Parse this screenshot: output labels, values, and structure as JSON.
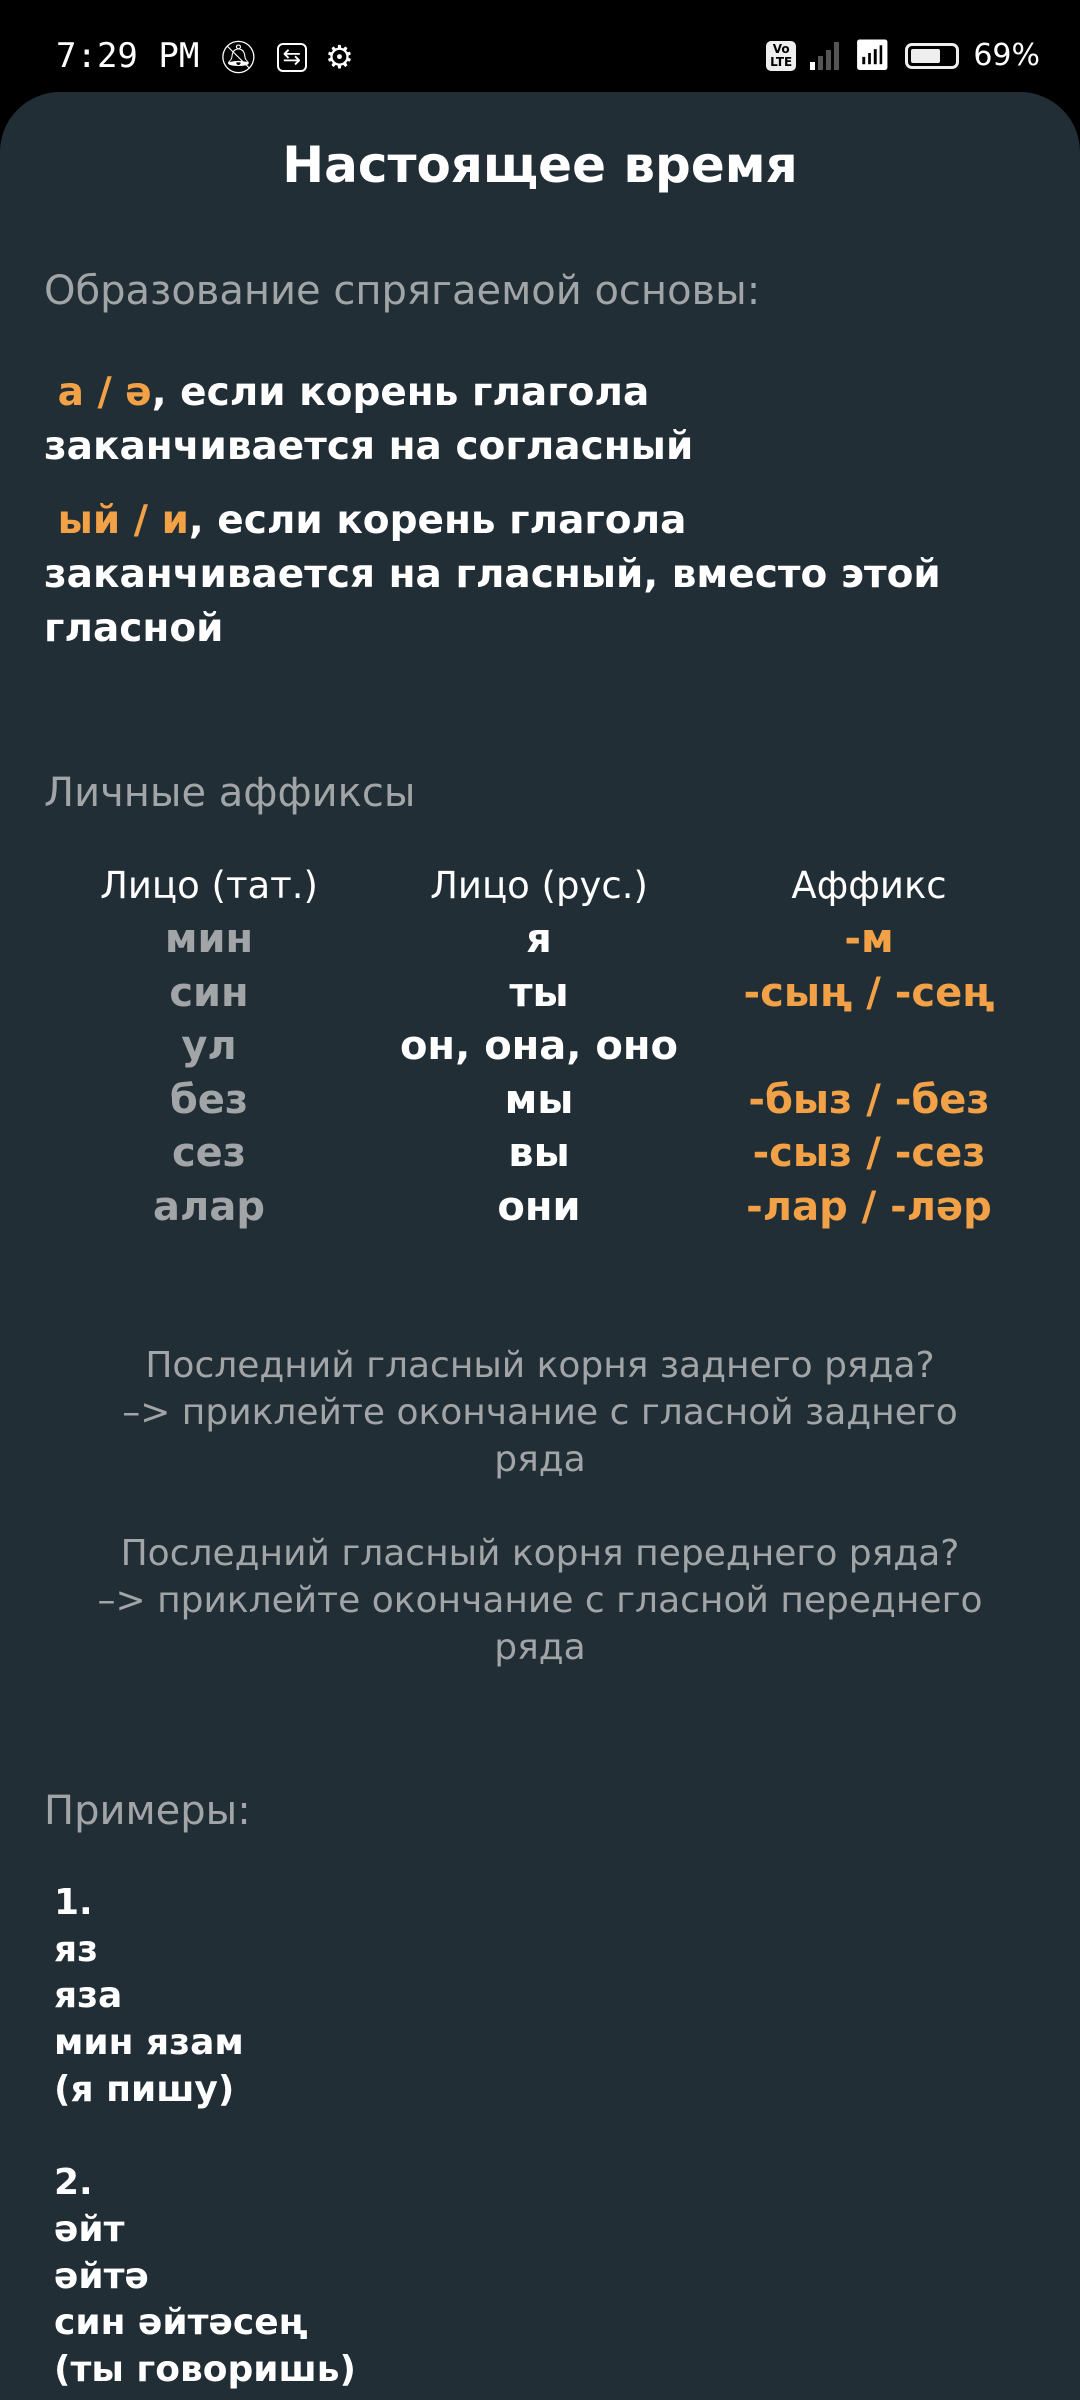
{
  "status_bar": {
    "time": "7:29 PM",
    "battery": "69%",
    "battery_level": 0.69,
    "icons": [
      "bell-off-icon",
      "cast-icon",
      "gear-icon",
      "volte-icon",
      "signal-icon",
      "wifi-icon",
      "battery-icon"
    ],
    "volte": "Vo LTE"
  },
  "title": "Настоящее время",
  "colors": {
    "background": "#222e35",
    "accent": "#f2a146",
    "muted": "#a2a5a7"
  },
  "formation": {
    "heading": "Образование спрягаемой основы:",
    "rules": [
      {
        "affix": "а / ә",
        "line1": ", если корень глагола",
        "line2": "заканчивается на согласный"
      },
      {
        "affix": "ый / и",
        "line1": ", если корень глагола",
        "line2": "заканчивается на гласный, вместо этой",
        "line3": "гласной"
      }
    ]
  },
  "affixes": {
    "heading": "Личные аффиксы",
    "columns": [
      "Лицо (тат.)",
      "Лицо (рус.)",
      "Аффикс"
    ],
    "rows": [
      {
        "tat": "мин",
        "rus": "я",
        "affix": "-м"
      },
      {
        "tat": "син",
        "rus": "ты",
        "affix": "-сың / -сең"
      },
      {
        "tat": "ул",
        "rus": "он, она, оно",
        "affix": ""
      },
      {
        "tat": "без",
        "rus": "мы",
        "affix": "-быз / -без"
      },
      {
        "tat": "сез",
        "rus": "вы",
        "affix": "-сыз / -сез"
      },
      {
        "tat": "алар",
        "rus": "они",
        "affix": "-лар / -ләр"
      }
    ]
  },
  "notes": [
    [
      "Последний гласный корня заднего ряда?",
      "–> приклейте окончание с гласной заднего",
      "ряда"
    ],
    [
      "Последний гласный корня переднего ряда?",
      "–> приклейте окончание с гласной переднего",
      "ряда"
    ]
  ],
  "examples": {
    "heading": "Примеры:",
    "items": [
      [
        "1.",
        "яз",
        "яза",
        "мин язам",
        "(я пишу)"
      ],
      [
        "2.",
        "әйт",
        "әйтә",
        "син әйтәсең",
        "(ты говоришь)"
      ]
    ]
  }
}
